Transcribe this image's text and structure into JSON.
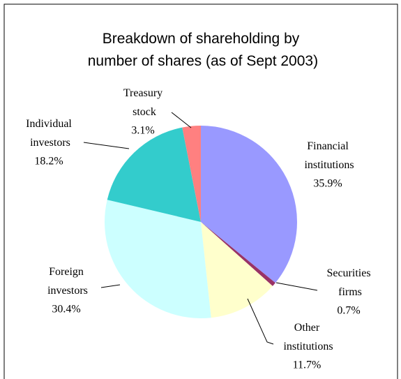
{
  "chart_data": {
    "type": "pie",
    "title": "Breakdown of shareholding by number of shares (as of Sept 2003)",
    "categories": [
      "Financial institutions",
      "Securities firms",
      "Other institutions",
      "Foreign investors",
      "Individual investors",
      "Treasury stock"
    ],
    "values": [
      35.9,
      0.7,
      11.7,
      30.4,
      18.2,
      3.1
    ],
    "value_labels": [
      "35.9%",
      "0.7%",
      "11.7%",
      "30.4%",
      "18.2%",
      "3.1%"
    ],
    "colors": [
      "#9999ff",
      "#993366",
      "#ffffcc",
      "#ccffff",
      "#33cccc",
      "#ff8080"
    ]
  }
}
